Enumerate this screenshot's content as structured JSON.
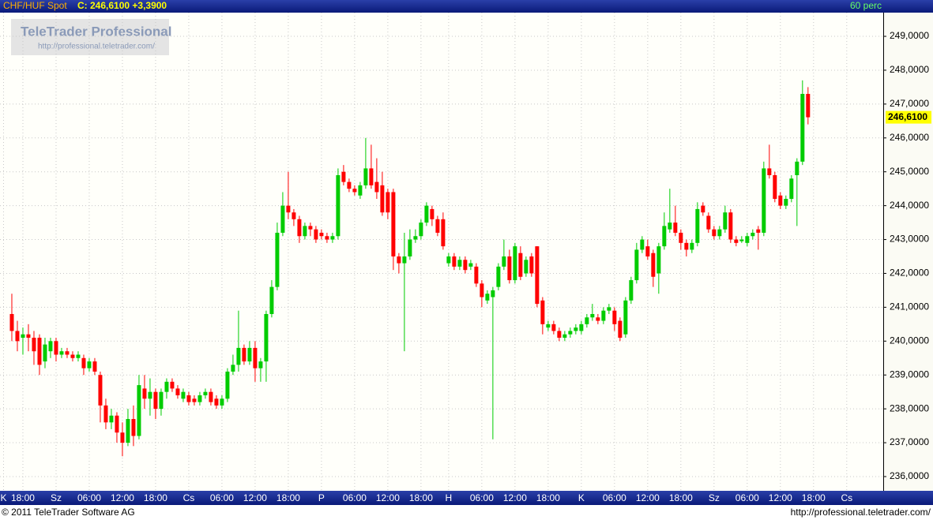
{
  "header": {
    "symbol": "CHF/HUF Spot",
    "quote": "C: 246,6100 +3,3900",
    "interval": "60 perc"
  },
  "watermark": {
    "brand": "TeleTrader Professional",
    "url": "http://professional.teletrader.com/"
  },
  "chart_data": {
    "type": "candlestick",
    "up_color": "#00cc00",
    "down_color": "#ff0000",
    "grid": true,
    "ylim": [
      235.58,
      249.7
    ],
    "yticks": [
      {
        "value": 236,
        "label": "236,0000"
      },
      {
        "value": 237,
        "label": "237,0000"
      },
      {
        "value": 238,
        "label": "238,0000"
      },
      {
        "value": 239,
        "label": "239,0000"
      },
      {
        "value": 240,
        "label": "240,0000"
      },
      {
        "value": 241,
        "label": "241,0000"
      },
      {
        "value": 242,
        "label": "242,0000"
      },
      {
        "value": 243,
        "label": "243,0000"
      },
      {
        "value": 244,
        "label": "244,0000"
      },
      {
        "value": 245,
        "label": "245,0000"
      },
      {
        "value": 246,
        "label": "246,0000"
      },
      {
        "value": 247,
        "label": "247,0000"
      },
      {
        "value": 248,
        "label": "248,0000"
      },
      {
        "value": 249,
        "label": "249,0000"
      }
    ],
    "xlim": [
      -2.14,
      157.6
    ],
    "xticks": [
      {
        "value": -1.5,
        "label": "K"
      },
      {
        "value": 2,
        "label": "18:00"
      },
      {
        "value": 8,
        "label": "Sz"
      },
      {
        "value": 14,
        "label": "06:00"
      },
      {
        "value": 20,
        "label": "12:00"
      },
      {
        "value": 26,
        "label": "18:00"
      },
      {
        "value": 32,
        "label": "Cs"
      },
      {
        "value": 38,
        "label": "06:00"
      },
      {
        "value": 44,
        "label": "12:00"
      },
      {
        "value": 50,
        "label": "18:00"
      },
      {
        "value": 56,
        "label": "P"
      },
      {
        "value": 62,
        "label": "06:00"
      },
      {
        "value": 68,
        "label": "12:00"
      },
      {
        "value": 74,
        "label": "18:00"
      },
      {
        "value": 79,
        "label": "H"
      },
      {
        "value": 85,
        "label": "06:00"
      },
      {
        "value": 91,
        "label": "12:00"
      },
      {
        "value": 97,
        "label": "18:00"
      },
      {
        "value": 103,
        "label": "K"
      },
      {
        "value": 109,
        "label": "06:00"
      },
      {
        "value": 115,
        "label": "12:00"
      },
      {
        "value": 121,
        "label": "18:00"
      },
      {
        "value": 127,
        "label": "Sz"
      },
      {
        "value": 133,
        "label": "06:00"
      },
      {
        "value": 139,
        "label": "12:00"
      },
      {
        "value": 145,
        "label": "18:00"
      },
      {
        "value": 151,
        "label": "Cs"
      }
    ],
    "last_price": {
      "value": 246.61,
      "label": "246,6100"
    },
    "open": [
      240.8,
      240.3,
      240.1,
      240.2,
      240.1,
      240.1,
      239.4,
      239.7,
      240.0,
      239.6,
      239.7,
      239.6,
      239.5,
      239.5,
      239.2,
      239.4,
      239.0,
      238.1,
      237.6,
      237.8,
      237.3,
      237.0,
      237.7,
      237.2,
      238.6,
      238.3,
      238.5,
      238.0,
      238.5,
      238.8,
      238.6,
      238.3,
      238.4,
      238.3,
      238.2,
      238.4,
      238.5,
      238.3,
      238.1,
      238.3,
      239.1,
      239.3,
      239.8,
      239.4,
      239.8,
      239.2,
      239.4,
      240.8,
      241.6,
      243.2,
      244.0,
      243.8,
      243.6,
      243.1,
      243.4,
      243.3,
      243.2,
      243.1,
      243.0,
      243.1,
      245.0,
      244.7,
      244.5,
      244.3,
      244.6,
      245.1,
      244.7,
      244.6,
      244.4,
      244.4,
      242.5,
      242.3,
      242.5,
      243.0,
      243.1,
      243.5,
      243.9,
      243.6,
      243.6,
      242.3,
      242.5,
      242.2,
      242.4,
      242.2,
      242.2,
      241.7,
      241.2,
      241.3,
      241.6,
      242.2,
      242.5,
      241.8,
      242.6,
      242.0,
      242.5,
      242.8,
      241.2,
      240.4,
      240.5,
      240.3,
      240.1,
      240.2,
      240.3,
      240.3,
      240.5,
      240.7,
      240.7,
      240.6,
      240.9,
      240.9,
      240.6,
      240.2,
      241.2,
      241.8,
      242.7,
      242.8,
      242.6,
      242.0,
      242.8,
      243.3,
      243.5,
      243.2,
      242.9,
      242.7,
      242.9,
      244.0,
      243.7,
      243.3,
      243.1,
      243.3,
      243.8,
      243.0,
      242.95,
      242.9,
      243.1,
      243.3,
      243.2,
      245.1,
      244.9,
      244.3,
      244.0,
      244.2,
      244.9,
      245.3,
      247.3
    ],
    "high": [
      241.4,
      240.6,
      240.4,
      240.5,
      240.3,
      240.2,
      240.1,
      240.1,
      240.1,
      239.8,
      239.8,
      239.7,
      239.7,
      239.6,
      239.5,
      239.5,
      239.1,
      238.3,
      238.0,
      237.9,
      237.6,
      238.0,
      238.1,
      239.0,
      239.0,
      238.9,
      238.6,
      238.6,
      238.9,
      238.9,
      238.7,
      238.6,
      238.5,
      238.4,
      238.5,
      238.6,
      238.6,
      238.4,
      238.4,
      239.2,
      239.6,
      240.9,
      239.9,
      240.0,
      240.0,
      239.5,
      240.9,
      241.8,
      243.5,
      244.4,
      245.0,
      243.9,
      243.7,
      243.5,
      243.5,
      243.4,
      243.3,
      243.2,
      243.2,
      245.1,
      245.2,
      244.8,
      244.6,
      244.7,
      246.0,
      245.8,
      245.4,
      245.0,
      244.5,
      244.5,
      242.6,
      243.2,
      243.3,
      243.3,
      243.6,
      244.1,
      244.0,
      243.7,
      243.8,
      242.6,
      242.6,
      242.5,
      242.5,
      242.4,
      242.3,
      241.8,
      241.5,
      241.6,
      242.3,
      243.0,
      242.7,
      242.9,
      242.8,
      242.5,
      242.6,
      242.8,
      241.3,
      240.6,
      240.6,
      240.4,
      240.3,
      240.4,
      240.5,
      240.6,
      240.8,
      241.1,
      240.8,
      241.0,
      241.1,
      241.0,
      240.7,
      241.3,
      241.9,
      242.9,
      243.1,
      243.0,
      242.7,
      242.9,
      243.8,
      244.5,
      244.0,
      243.3,
      243.0,
      243.0,
      244.1,
      244.1,
      243.8,
      243.4,
      243.4,
      244.0,
      243.9,
      243.1,
      243.1,
      243.2,
      243.3,
      243.4,
      245.3,
      245.8,
      245.0,
      244.4,
      244.3,
      244.9,
      245.4,
      247.7,
      247.5
    ],
    "low": [
      240.0,
      239.7,
      239.6,
      239.7,
      239.3,
      239.0,
      239.2,
      239.5,
      239.4,
      239.5,
      239.5,
      239.4,
      239.4,
      239.0,
      239.1,
      239.0,
      237.6,
      237.4,
      237.4,
      237.0,
      236.6,
      236.9,
      236.9,
      237.1,
      238.0,
      237.8,
      237.7,
      237.8,
      238.3,
      238.5,
      238.3,
      238.2,
      238.1,
      238.1,
      238.1,
      238.3,
      238.1,
      238.0,
      238.0,
      238.2,
      239.0,
      239.1,
      239.3,
      239.3,
      238.8,
      238.8,
      238.8,
      240.7,
      241.5,
      243.1,
      243.6,
      243.4,
      242.9,
      243.0,
      243.1,
      242.9,
      243.0,
      242.9,
      242.9,
      243.0,
      244.6,
      244.4,
      244.3,
      244.2,
      244.5,
      244.5,
      244.2,
      243.7,
      243.6,
      242.1,
      242.0,
      239.7,
      242.4,
      242.9,
      243.0,
      243.4,
      243.4,
      243.1,
      242.7,
      242.2,
      242.1,
      242.1,
      242.0,
      242.1,
      241.6,
      241.0,
      241.1,
      237.1,
      241.5,
      242.1,
      241.7,
      241.7,
      241.8,
      241.9,
      241.9,
      241.0,
      240.2,
      240.3,
      240.2,
      240.0,
      240.0,
      240.1,
      240.2,
      240.2,
      240.4,
      240.6,
      240.5,
      240.5,
      240.8,
      240.3,
      240.0,
      240.1,
      241.1,
      241.7,
      242.6,
      242.4,
      241.6,
      241.4,
      242.7,
      243.2,
      243.1,
      242.7,
      242.5,
      242.6,
      242.8,
      243.7,
      243.2,
      243.0,
      243.0,
      243.2,
      242.9,
      242.8,
      242.9,
      242.8,
      243.0,
      242.7,
      243.1,
      244.8,
      244.1,
      243.9,
      243.9,
      244.1,
      243.4,
      245.2,
      246.4
    ],
    "close": [
      240.3,
      240.0,
      240.2,
      240.1,
      239.7,
      239.3,
      239.9,
      240.0,
      239.6,
      239.7,
      239.6,
      239.5,
      239.6,
      239.2,
      239.4,
      239.1,
      238.1,
      237.6,
      237.8,
      237.3,
      237.0,
      237.7,
      237.2,
      238.7,
      238.3,
      238.5,
      238.0,
      238.5,
      238.8,
      238.6,
      238.4,
      238.5,
      238.2,
      238.2,
      238.4,
      238.5,
      238.2,
      238.1,
      238.3,
      239.1,
      239.3,
      239.8,
      239.4,
      239.8,
      239.2,
      239.4,
      240.8,
      241.6,
      243.2,
      244.0,
      243.8,
      243.6,
      243.1,
      243.4,
      243.3,
      243.0,
      243.1,
      243.0,
      243.1,
      244.9,
      244.7,
      244.5,
      244.4,
      244.6,
      245.1,
      244.6,
      244.4,
      243.8,
      243.8,
      242.5,
      242.3,
      242.5,
      243.0,
      243.1,
      243.5,
      244.0,
      243.6,
      243.2,
      242.8,
      242.5,
      242.2,
      242.4,
      242.1,
      242.3,
      241.7,
      241.3,
      241.4,
      241.5,
      242.2,
      242.5,
      241.8,
      242.8,
      241.9,
      242.4,
      242.0,
      241.1,
      240.5,
      240.5,
      240.3,
      240.1,
      240.2,
      240.3,
      240.4,
      240.5,
      240.7,
      240.8,
      240.6,
      240.9,
      241.0,
      240.5,
      240.1,
      241.2,
      241.8,
      242.7,
      243.0,
      242.5,
      241.9,
      242.8,
      243.4,
      243.5,
      243.2,
      242.9,
      242.7,
      242.9,
      243.9,
      243.8,
      243.3,
      243.1,
      243.3,
      243.8,
      243.0,
      242.9,
      243.0,
      243.1,
      243.2,
      243.2,
      245.1,
      244.9,
      244.2,
      244.0,
      244.2,
      244.8,
      245.3,
      247.3,
      246.61
    ]
  },
  "footer": {
    "copyright": "© 2011 TeleTrader Software AG",
    "url": "http://professional.teletrader.com/"
  }
}
